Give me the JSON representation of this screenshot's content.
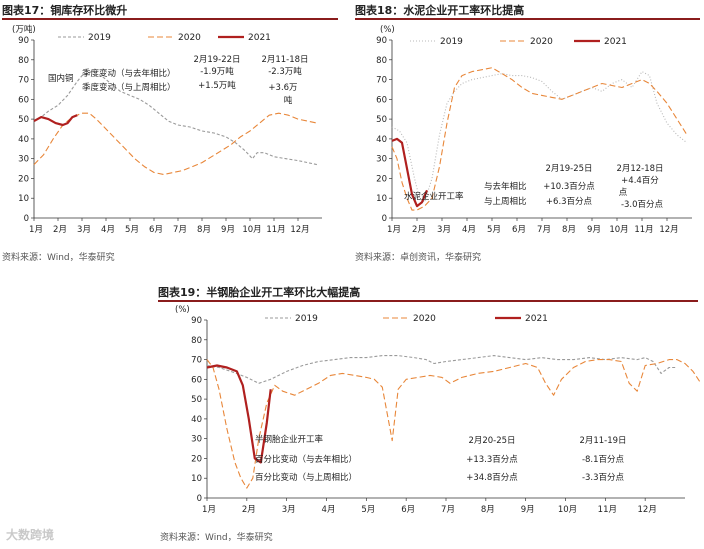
{
  "chart_data": [
    {
      "type": "line",
      "title_label": "图表17：",
      "title": "铜库存环比微升",
      "unit": "(万吨)",
      "source": "资料来源：Wind，华泰研究",
      "categories": [
        "1月",
        "2月",
        "3月",
        "4月",
        "5月",
        "6月",
        "7月",
        "8月",
        "9月",
        "10月",
        "11月",
        "12月"
      ],
      "ylim": [
        0,
        90
      ],
      "yticks": [
        "0",
        "10",
        "20",
        "30",
        "40",
        "50",
        "60",
        "70",
        "80",
        "90"
      ],
      "series": [
        {
          "name": "2019",
          "color": "#9a9a9a",
          "dash": "3,2",
          "points": [
            [
              0,
              49
            ],
            [
              0.3,
              51
            ],
            [
              0.6,
              54
            ],
            [
              1,
              57
            ],
            [
              1.4,
              62
            ],
            [
              1.8,
              69
            ],
            [
              2,
              72
            ],
            [
              2.4,
              74
            ],
            [
              2.8,
              72
            ],
            [
              3.2,
              68
            ],
            [
              3.6,
              64
            ],
            [
              4,
              62
            ],
            [
              4.4,
              60
            ],
            [
              4.8,
              57
            ],
            [
              5.2,
              53
            ],
            [
              5.6,
              49
            ],
            [
              6,
              47
            ],
            [
              6.5,
              46
            ],
            [
              7,
              44
            ],
            [
              7.5,
              43
            ],
            [
              8,
              41
            ],
            [
              8.4,
              38
            ],
            [
              8.8,
              34
            ],
            [
              9.1,
              30
            ],
            [
              9.3,
              33
            ],
            [
              9.6,
              33
            ],
            [
              10,
              31
            ],
            [
              10.5,
              30
            ],
            [
              11,
              29
            ],
            [
              11.4,
              28
            ],
            [
              11.8,
              27
            ]
          ]
        },
        {
          "name": "2020",
          "color": "#e8873a",
          "dash": "6,3",
          "points": [
            [
              0,
              27
            ],
            [
              0.4,
              32
            ],
            [
              0.8,
              40
            ],
            [
              1.2,
              47
            ],
            [
              1.6,
              51
            ],
            [
              2,
              53
            ],
            [
              2.3,
              53
            ],
            [
              2.6,
              50
            ],
            [
              3,
              45
            ],
            [
              3.4,
              40
            ],
            [
              3.8,
              35
            ],
            [
              4.2,
              30
            ],
            [
              4.6,
              26
            ],
            [
              5,
              23
            ],
            [
              5.4,
              22
            ],
            [
              5.8,
              23
            ],
            [
              6.2,
              24
            ],
            [
              6.6,
              26
            ],
            [
              7,
              28
            ],
            [
              7.4,
              31
            ],
            [
              7.8,
              34
            ],
            [
              8.2,
              37
            ],
            [
              8.6,
              41
            ],
            [
              9,
              44
            ],
            [
              9.4,
              48
            ],
            [
              9.8,
              52
            ],
            [
              10.2,
              53
            ],
            [
              10.6,
              52
            ],
            [
              11,
              50
            ],
            [
              11.4,
              49
            ],
            [
              11.8,
              48
            ]
          ]
        },
        {
          "name": "2021",
          "color": "#b0201f",
          "dash": "",
          "points": [
            [
              0,
              49
            ],
            [
              0.3,
              51
            ],
            [
              0.6,
              50
            ],
            [
              0.9,
              48
            ],
            [
              1.2,
              47
            ],
            [
              1.4,
              48
            ],
            [
              1.6,
              51
            ],
            [
              1.8,
              52
            ]
          ]
        }
      ],
      "annotations": {
        "region": "国内铜",
        "row1": "季度变动（与去年相比）",
        "row2": "季度变动（与上周相比）",
        "p1_date": "2月19-22日",
        "p1_v1": "-1.9万吨",
        "p1_v2": "+1.5万吨",
        "p2_date": "2月11-18日",
        "p2_v1": "-2.3万吨",
        "p2_v2": "+3.6万",
        "p2_v2b": "吨"
      }
    },
    {
      "type": "line",
      "title_label": "图表18：",
      "title": "水泥企业开工率环比提高",
      "unit": "(%)",
      "source": "资料来源：卓创资讯，华泰研究",
      "categories": [
        "1月",
        "2月",
        "3月",
        "4月",
        "5月",
        "6月",
        "7月",
        "8月",
        "9月",
        "10月",
        "11月",
        "12月"
      ],
      "ylim": [
        0,
        90
      ],
      "yticks": [
        "0",
        "10",
        "20",
        "30",
        "40",
        "50",
        "60",
        "70",
        "80",
        "90"
      ],
      "series": [
        {
          "name": "2019",
          "color": "#b8b8b8",
          "dash": "1,2",
          "points": [
            [
              0,
              46
            ],
            [
              0.3,
              44
            ],
            [
              0.6,
              38
            ],
            [
              0.9,
              20
            ],
            [
              1.1,
              10
            ],
            [
              1.3,
              8
            ],
            [
              1.6,
              20
            ],
            [
              1.9,
              42
            ],
            [
              2.2,
              58
            ],
            [
              2.5,
              64
            ],
            [
              2.8,
              68
            ],
            [
              3.2,
              70
            ],
            [
              3.6,
              71
            ],
            [
              4,
              72
            ],
            [
              4.4,
              73
            ],
            [
              4.8,
              72
            ],
            [
              5.2,
              72
            ],
            [
              5.6,
              71
            ],
            [
              6,
              69
            ],
            [
              6.4,
              64
            ],
            [
              6.8,
              60
            ],
            [
              7.2,
              62
            ],
            [
              7.6,
              64
            ],
            [
              8,
              66
            ],
            [
              8.4,
              64
            ],
            [
              8.8,
              68
            ],
            [
              9.2,
              70
            ],
            [
              9.6,
              66
            ],
            [
              10,
              74
            ],
            [
              10.3,
              72
            ],
            [
              10.6,
              58
            ],
            [
              11,
              48
            ],
            [
              11.4,
              42
            ],
            [
              11.8,
              38
            ]
          ]
        },
        {
          "name": "2020",
          "color": "#e8873a",
          "dash": "6,3",
          "points": [
            [
              0,
              36
            ],
            [
              0.2,
              30
            ],
            [
              0.4,
              18
            ],
            [
              0.6,
              10
            ],
            [
              0.8,
              4
            ],
            [
              1.0,
              4
            ],
            [
              1.3,
              6
            ],
            [
              1.6,
              10
            ],
            [
              1.9,
              26
            ],
            [
              2.2,
              48
            ],
            [
              2.5,
              66
            ],
            [
              2.8,
              72
            ],
            [
              3.2,
              74
            ],
            [
              3.6,
              75
            ],
            [
              4,
              76
            ],
            [
              4.4,
              73
            ],
            [
              4.8,
              70
            ],
            [
              5.2,
              66
            ],
            [
              5.6,
              63
            ],
            [
              6,
              62
            ],
            [
              6.4,
              61
            ],
            [
              6.8,
              60
            ],
            [
              7.2,
              62
            ],
            [
              7.6,
              64
            ],
            [
              8,
              66
            ],
            [
              8.4,
              68
            ],
            [
              8.8,
              67
            ],
            [
              9.2,
              66
            ],
            [
              9.6,
              68
            ],
            [
              10,
              70
            ],
            [
              10.3,
              68
            ],
            [
              10.6,
              64
            ],
            [
              11,
              58
            ],
            [
              11.4,
              50
            ],
            [
              11.8,
              42
            ]
          ]
        },
        {
          "name": "2021",
          "color": "#b0201f",
          "dash": "",
          "points": [
            [
              0,
              39
            ],
            [
              0.2,
              40
            ],
            [
              0.4,
              38
            ],
            [
              0.6,
              25
            ],
            [
              0.8,
              12
            ],
            [
              1.0,
              6
            ],
            [
              1.2,
              8
            ],
            [
              1.4,
              14
            ]
          ]
        }
      ],
      "annotations": {
        "label": "水泥企业开工率",
        "row1": "与去年相比",
        "row2": "与上周相比",
        "p1_date": "2月19-25日",
        "p1_v1": "+10.3百分点",
        "p1_v2": "+6.3百分点",
        "p2_date": "2月12-18日",
        "p2_v1": "+4.4百分",
        "p2_v1b": "点",
        "p2_v2": "-3.0百分点"
      }
    },
    {
      "type": "line",
      "title_label": "图表19：",
      "title": "半钢胎企业开工率环比大幅提高",
      "unit": "(%)",
      "source": "资料来源：Wind，华泰研究",
      "categories": [
        "1月",
        "2月",
        "3月",
        "4月",
        "5月",
        "6月",
        "7月",
        "8月",
        "9月",
        "10月",
        "11月",
        "12月"
      ],
      "ylim": [
        0,
        90
      ],
      "yticks": [
        "0",
        "10",
        "20",
        "30",
        "40",
        "50",
        "60",
        "70",
        "80",
        "90"
      ],
      "series": [
        {
          "name": "2019",
          "color": "#9a9a9a",
          "dash": "3,2",
          "points": [
            [
              0,
              67
            ],
            [
              0.3,
              66
            ],
            [
              0.6,
              64
            ],
            [
              1,
              61
            ],
            [
              1.3,
              58
            ],
            [
              1.6,
              60
            ],
            [
              2,
              64
            ],
            [
              2.4,
              67
            ],
            [
              2.8,
              69
            ],
            [
              3.2,
              70
            ],
            [
              3.6,
              71
            ],
            [
              4,
              71
            ],
            [
              4.4,
              72
            ],
            [
              4.8,
              72
            ],
            [
              5.2,
              71
            ],
            [
              5.5,
              70
            ],
            [
              5.7,
              68
            ],
            [
              6,
              69
            ],
            [
              6.4,
              70
            ],
            [
              6.8,
              71
            ],
            [
              7.2,
              72
            ],
            [
              7.6,
              71
            ],
            [
              8,
              70
            ],
            [
              8.4,
              71
            ],
            [
              8.8,
              70
            ],
            [
              9.2,
              70
            ],
            [
              9.6,
              71
            ],
            [
              10,
              70
            ],
            [
              10.4,
              71
            ],
            [
              10.8,
              70
            ],
            [
              11,
              71
            ],
            [
              11.2,
              69
            ],
            [
              11.4,
              63
            ],
            [
              11.6,
              66
            ],
            [
              11.8,
              66
            ]
          ]
        },
        {
          "name": "2020",
          "color": "#e8873a",
          "dash": "6,3",
          "points": [
            [
              0,
              70
            ],
            [
              0.15,
              66
            ],
            [
              0.3,
              55
            ],
            [
              0.5,
              35
            ],
            [
              0.7,
              18
            ],
            [
              0.85,
              10
            ],
            [
              1.0,
              5
            ],
            [
              1.15,
              10
            ],
            [
              1.3,
              30
            ],
            [
              1.5,
              48
            ],
            [
              1.7,
              57
            ],
            [
              1.9,
              54
            ],
            [
              2.2,
              52
            ],
            [
              2.5,
              55
            ],
            [
              2.8,
              58
            ],
            [
              3.1,
              62
            ],
            [
              3.4,
              63
            ],
            [
              3.7,
              62
            ],
            [
              4,
              61
            ],
            [
              4.2,
              60
            ],
            [
              4.4,
              56
            ],
            [
              4.55,
              40
            ],
            [
              4.65,
              29
            ],
            [
              4.8,
              55
            ],
            [
              5.0,
              60
            ],
            [
              5.3,
              61
            ],
            [
              5.6,
              62
            ],
            [
              5.9,
              61
            ],
            [
              6.1,
              58
            ],
            [
              6.4,
              61
            ],
            [
              6.8,
              63
            ],
            [
              7.2,
              64
            ],
            [
              7.6,
              66
            ],
            [
              8,
              68
            ],
            [
              8.3,
              66
            ],
            [
              8.5,
              58
            ],
            [
              8.7,
              52
            ],
            [
              8.9,
              60
            ],
            [
              9.2,
              66
            ],
            [
              9.5,
              69
            ],
            [
              9.8,
              70
            ],
            [
              10.1,
              70
            ],
            [
              10.4,
              69
            ],
            [
              10.6,
              58
            ],
            [
              10.8,
              54
            ],
            [
              11.0,
              67
            ],
            [
              11.3,
              68
            ],
            [
              11.6,
              70
            ],
            [
              11.8,
              70
            ],
            [
              12,
              68
            ],
            [
              12.2,
              64
            ],
            [
              12.4,
              58
            ],
            [
              12.6,
              55
            ]
          ]
        },
        {
          "name": "2021",
          "color": "#b0201f",
          "dash": "",
          "points": [
            [
              0,
              66
            ],
            [
              0.25,
              67
            ],
            [
              0.5,
              66
            ],
            [
              0.75,
              64
            ],
            [
              0.9,
              57
            ],
            [
              1.05,
              40
            ],
            [
              1.2,
              20
            ],
            [
              1.35,
              18
            ],
            [
              1.5,
              38
            ],
            [
              1.6,
              55
            ]
          ]
        }
      ],
      "annotations": {
        "label": "半钢胎企业开工率",
        "row1": "百分比变动（与去年相比）",
        "row2": "百分比变动（与上周相比）",
        "p1_date": "2月20-25日",
        "p1_v1": "+13.3百分点",
        "p1_v2": "+34.8百分点",
        "p2_date": "2月11-19日",
        "p2_v1": "-8.1百分点",
        "p2_v2": "-3.3百分点"
      }
    }
  ],
  "watermark": "大数跨境"
}
